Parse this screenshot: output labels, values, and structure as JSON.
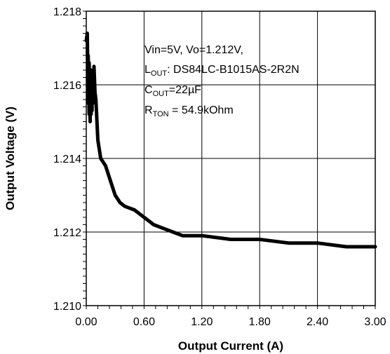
{
  "chart_data": {
    "type": "line",
    "title": "",
    "xlabel": "Output Current (A)",
    "ylabel": "Output Voltage (V)",
    "xlim": [
      0,
      3
    ],
    "ylim": [
      1.21,
      1.218
    ],
    "x_ticks": [
      0,
      0.6,
      1.2,
      1.8,
      2.4,
      3.0
    ],
    "x_tick_labels": [
      "0.00",
      "0.60",
      "1.20",
      "1.80",
      "2.40",
      "3.00"
    ],
    "y_ticks": [
      1.21,
      1.212,
      1.214,
      1.216,
      1.218
    ],
    "y_tick_labels": [
      "1.210",
      "1.212",
      "1.214",
      "1.216",
      "1.218"
    ],
    "grid": true,
    "legend": "none",
    "line_color": "#000000",
    "annotation": {
      "line1": "Vin=5V, Vo=1.212V,",
      "line2_main": "L",
      "line2_sub": "OUT",
      "line2_rest": ": DS84LC-B1015AS-2R2N",
      "line3_main": "C",
      "line3_sub": "OUT",
      "line3_rest": "=22µF",
      "line4_main": "R",
      "line4_sub": "TON",
      "line4_rest": " = 54.9kOhm"
    },
    "series": [
      {
        "x": [
          0.0,
          0.01,
          0.02,
          0.02,
          0.03,
          0.03,
          0.04,
          0.04,
          0.05,
          0.05,
          0.06,
          0.06,
          0.07,
          0.07,
          0.08,
          0.08,
          0.09,
          0.1,
          0.12,
          0.15,
          0.2,
          0.25,
          0.3,
          0.35,
          0.4,
          0.5,
          0.6,
          0.7,
          0.8,
          0.9,
          1.0,
          1.2,
          1.5,
          1.8,
          2.1,
          2.4,
          2.7,
          3.0
        ],
        "y": [
          1.2172,
          1.2174,
          1.2155,
          1.2168,
          1.2152,
          1.2166,
          1.215,
          1.2163,
          1.2152,
          1.2164,
          1.2153,
          1.2162,
          1.2155,
          1.2163,
          1.2156,
          1.2165,
          1.2158,
          1.2156,
          1.2145,
          1.214,
          1.2138,
          1.2134,
          1.213,
          1.2128,
          1.2127,
          1.2126,
          1.2124,
          1.2122,
          1.2121,
          1.212,
          1.2119,
          1.2119,
          1.2118,
          1.2118,
          1.2117,
          1.2117,
          1.2116,
          1.2116
        ]
      }
    ]
  }
}
